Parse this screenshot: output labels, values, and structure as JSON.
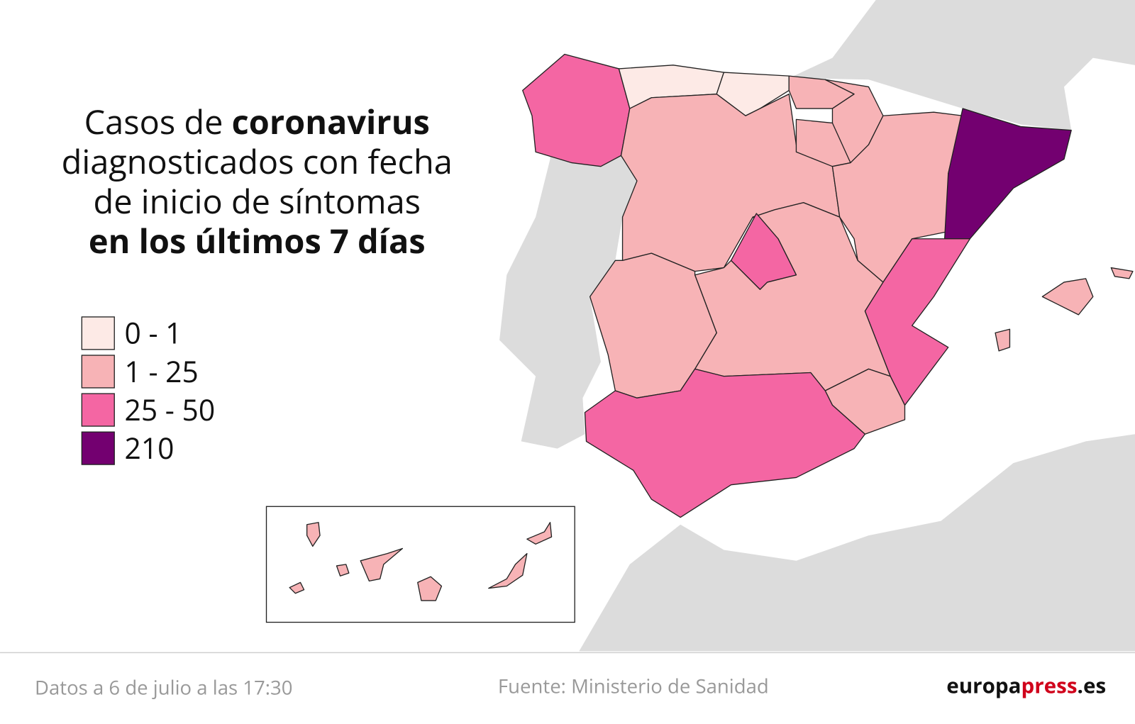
{
  "title": {
    "lines": [
      [
        {
          "text": "Casos de",
          "bold": false
        },
        {
          "text": "coronavirus",
          "bold": true
        }
      ],
      [
        {
          "text": "diagnosticados con fecha",
          "bold": false
        }
      ],
      [
        {
          "text": "de inicio de síntomas",
          "bold": false
        }
      ],
      [
        {
          "text": "en los últimos 7 días",
          "bold": true
        }
      ]
    ]
  },
  "legend": [
    {
      "label": "0 - 1",
      "color": "#fdeae6"
    },
    {
      "label": "1 - 25",
      "color": "#f7b3b6"
    },
    {
      "label": "25 - 50",
      "color": "#f466a3"
    },
    {
      "label": "210",
      "color": "#730070"
    }
  ],
  "footer": {
    "date": "Datos a 6 de julio a las 17:30",
    "source": "Fuente: Ministerio de Sanidad",
    "logo": [
      {
        "text": "europa",
        "color": "#111111"
      },
      {
        "text": "press",
        "color": "#d0021b"
      },
      {
        "text": ".es",
        "color": "#111111"
      }
    ]
  }
}
